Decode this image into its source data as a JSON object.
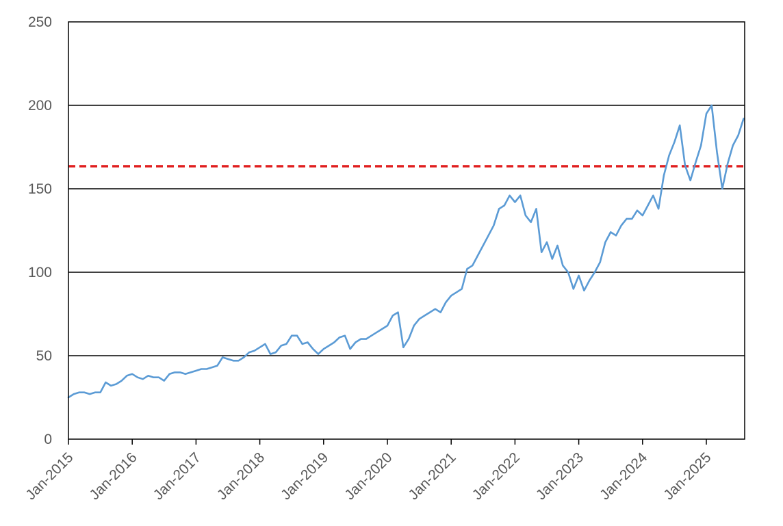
{
  "chart_data": {
    "type": "line",
    "title": "",
    "xlabel": "",
    "ylabel": "",
    "x_axis": {
      "type": "date",
      "range": [
        "2015-01",
        "2025-08"
      ]
    },
    "ylim": [
      0,
      250
    ],
    "yticks": [
      0,
      50,
      100,
      150,
      200,
      250
    ],
    "ytick_labels": [
      "0",
      "50",
      "100",
      "150",
      "200",
      "250"
    ],
    "xtick_labels": [
      "Jan-2015",
      "Jan-2016",
      "Jan-2017",
      "Jan-2018",
      "Jan-2019",
      "Jan-2020",
      "Jan-2021",
      "Jan-2022",
      "Jan-2023",
      "Jan-2024",
      "Jan-2025"
    ],
    "grid": {
      "horizontal": true,
      "vertical": false
    },
    "legend": "none",
    "colors": {
      "series": "#5b9bd5",
      "reference_line": "#e01f1f",
      "grid": "#000000",
      "tick_text": "#595959"
    },
    "reference_line": {
      "y": 163.5,
      "style": "dashed"
    },
    "series": [
      {
        "points": [
          [
            "2015-01",
            25
          ],
          [
            "2015-02",
            27
          ],
          [
            "2015-03",
            28
          ],
          [
            "2015-04",
            28
          ],
          [
            "2015-05",
            27
          ],
          [
            "2015-06",
            28
          ],
          [
            "2015-07",
            28
          ],
          [
            "2015-08",
            34
          ],
          [
            "2015-09",
            32
          ],
          [
            "2015-10",
            33
          ],
          [
            "2015-11",
            35
          ],
          [
            "2015-12",
            38
          ],
          [
            "2016-01",
            39
          ],
          [
            "2016-02",
            37
          ],
          [
            "2016-03",
            36
          ],
          [
            "2016-04",
            38
          ],
          [
            "2016-05",
            37
          ],
          [
            "2016-06",
            37
          ],
          [
            "2016-07",
            35
          ],
          [
            "2016-08",
            39
          ],
          [
            "2016-09",
            40
          ],
          [
            "2016-10",
            40
          ],
          [
            "2016-11",
            39
          ],
          [
            "2016-12",
            40
          ],
          [
            "2017-01",
            41
          ],
          [
            "2017-02",
            42
          ],
          [
            "2017-03",
            42
          ],
          [
            "2017-04",
            43
          ],
          [
            "2017-05",
            44
          ],
          [
            "2017-06",
            49
          ],
          [
            "2017-07",
            48
          ],
          [
            "2017-08",
            47
          ],
          [
            "2017-09",
            47
          ],
          [
            "2017-10",
            49
          ],
          [
            "2017-11",
            52
          ],
          [
            "2017-12",
            53
          ],
          [
            "2018-01",
            55
          ],
          [
            "2018-02",
            57
          ],
          [
            "2018-03",
            51
          ],
          [
            "2018-04",
            52
          ],
          [
            "2018-05",
            56
          ],
          [
            "2018-06",
            57
          ],
          [
            "2018-07",
            62
          ],
          [
            "2018-08",
            62
          ],
          [
            "2018-09",
            57
          ],
          [
            "2018-10",
            58
          ],
          [
            "2018-11",
            54
          ],
          [
            "2018-12",
            51
          ],
          [
            "2019-01",
            54
          ],
          [
            "2019-02",
            56
          ],
          [
            "2019-03",
            58
          ],
          [
            "2019-04",
            61
          ],
          [
            "2019-05",
            62
          ],
          [
            "2019-06",
            54
          ],
          [
            "2019-07",
            58
          ],
          [
            "2019-08",
            60
          ],
          [
            "2019-09",
            60
          ],
          [
            "2019-10",
            62
          ],
          [
            "2019-11",
            64
          ],
          [
            "2019-12",
            66
          ],
          [
            "2020-01",
            68
          ],
          [
            "2020-02",
            74
          ],
          [
            "2020-03",
            76
          ],
          [
            "2020-04",
            55
          ],
          [
            "2020-05",
            60
          ],
          [
            "2020-06",
            68
          ],
          [
            "2020-07",
            72
          ],
          [
            "2020-08",
            74
          ],
          [
            "2020-09",
            76
          ],
          [
            "2020-10",
            78
          ],
          [
            "2020-11",
            76
          ],
          [
            "2020-12",
            82
          ],
          [
            "2021-01",
            86
          ],
          [
            "2021-02",
            88
          ],
          [
            "2021-03",
            90
          ],
          [
            "2021-04",
            102
          ],
          [
            "2021-05",
            104
          ],
          [
            "2021-06",
            110
          ],
          [
            "2021-07",
            116
          ],
          [
            "2021-08",
            122
          ],
          [
            "2021-09",
            128
          ],
          [
            "2021-10",
            138
          ],
          [
            "2021-11",
            140
          ],
          [
            "2021-12",
            146
          ],
          [
            "2022-01",
            142
          ],
          [
            "2022-02",
            146
          ],
          [
            "2022-03",
            134
          ],
          [
            "2022-04",
            130
          ],
          [
            "2022-05",
            138
          ],
          [
            "2022-06",
            112
          ],
          [
            "2022-07",
            118
          ],
          [
            "2022-08",
            108
          ],
          [
            "2022-09",
            116
          ],
          [
            "2022-10",
            104
          ],
          [
            "2022-11",
            100
          ],
          [
            "2022-12",
            90
          ],
          [
            "2023-01",
            98
          ],
          [
            "2023-02",
            89
          ],
          [
            "2023-03",
            95
          ],
          [
            "2023-04",
            100
          ],
          [
            "2023-05",
            106
          ],
          [
            "2023-06",
            118
          ],
          [
            "2023-07",
            124
          ],
          [
            "2023-08",
            122
          ],
          [
            "2023-09",
            128
          ],
          [
            "2023-10",
            132
          ],
          [
            "2023-11",
            132
          ],
          [
            "2023-12",
            137
          ],
          [
            "2024-01",
            134
          ],
          [
            "2024-02",
            140
          ],
          [
            "2024-03",
            146
          ],
          [
            "2024-04",
            138
          ],
          [
            "2024-05",
            158
          ],
          [
            "2024-06",
            170
          ],
          [
            "2024-07",
            178
          ],
          [
            "2024-08",
            188
          ],
          [
            "2024-09",
            164
          ],
          [
            "2024-10",
            155
          ],
          [
            "2024-11",
            166
          ],
          [
            "2024-12",
            176
          ],
          [
            "2025-01",
            195
          ],
          [
            "2025-02",
            200
          ],
          [
            "2025-03",
            172
          ],
          [
            "2025-04",
            150
          ],
          [
            "2025-05",
            165
          ],
          [
            "2025-06",
            176
          ],
          [
            "2025-07",
            182
          ],
          [
            "2025-08",
            192
          ]
        ]
      }
    ]
  }
}
